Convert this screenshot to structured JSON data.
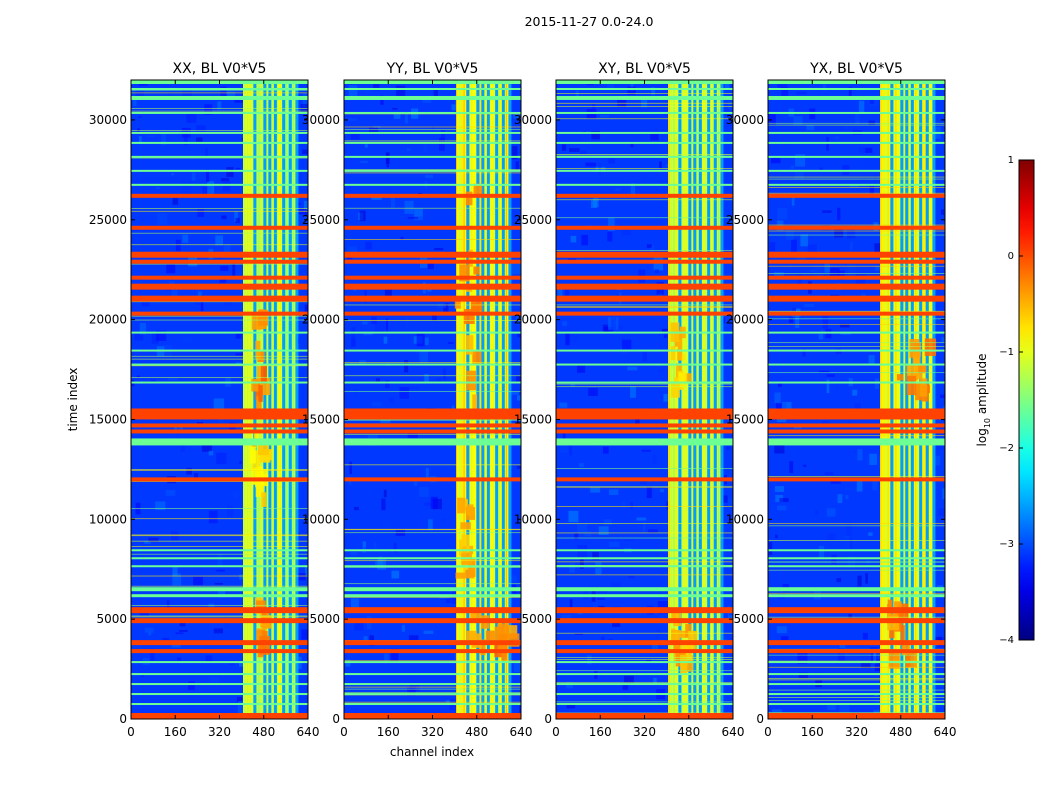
{
  "figure": {
    "suptitle": "2015-11-27 0.0-24.0"
  },
  "chart_data": {
    "type": "heatmap",
    "xlabel": "channel index",
    "ylabel": "time index",
    "xlim": [
      0,
      640
    ],
    "ylim": [
      0,
      32000
    ],
    "xticks": [
      0,
      160,
      320,
      480,
      640
    ],
    "xtick_labels": [
      "0",
      "160",
      "320",
      "480",
      "640"
    ],
    "yticks": [
      0,
      5000,
      10000,
      15000,
      20000,
      25000,
      30000
    ],
    "ytick_labels": [
      "0",
      "5000",
      "10000",
      "15000",
      "20000",
      "25000",
      "30000"
    ],
    "panels": [
      {
        "title": "XX, BL V0*V5",
        "show_xlabel": false,
        "show_ylabel": true,
        "band_level": -1.2,
        "blobs": [
          [
            430,
            470,
            15500,
            20000,
            -0.25
          ],
          [
            430,
            480,
            10500,
            14000,
            -0.7
          ],
          [
            440,
            480,
            2500,
            5500,
            -0.4
          ]
        ]
      },
      {
        "title": "YY, BL V0*V5",
        "show_xlabel": true,
        "show_ylabel": false,
        "band_level": -0.9,
        "blobs": [
          [
            400,
            500,
            15500,
            27000,
            -0.35
          ],
          [
            400,
            450,
            6500,
            10500,
            -0.45
          ],
          [
            430,
            600,
            3000,
            5000,
            -0.3
          ]
        ]
      },
      {
        "title": "XY, BL V0*V5",
        "show_xlabel": false,
        "show_ylabel": false,
        "band_level": -1.05,
        "blobs": [
          [
            410,
            450,
            16000,
            20000,
            -0.6
          ],
          [
            410,
            480,
            2500,
            5500,
            -0.5
          ]
        ]
      },
      {
        "title": "YX, BL V0*V5",
        "show_xlabel": false,
        "show_ylabel": false,
        "band_level": -0.95,
        "blobs": [
          [
            440,
            570,
            15500,
            18500,
            -0.35
          ],
          [
            420,
            500,
            2500,
            5500,
            -0.3
          ]
        ]
      }
    ],
    "rfi_channel_band": [
      405,
      600
    ],
    "rfi_channel_columns": [
      448,
      484,
      502,
      522,
      552,
      576,
      600
    ],
    "strong_rows": [
      [
        0,
        300
      ],
      [
        3300,
        3500
      ],
      [
        3700,
        3950
      ],
      [
        4800,
        5050
      ],
      [
        5300,
        5600
      ],
      [
        11900,
        12100
      ],
      [
        14300,
        14500
      ],
      [
        14600,
        14800
      ],
      [
        15000,
        15550
      ],
      [
        20200,
        20400
      ],
      [
        20900,
        21200
      ],
      [
        21500,
        21800
      ],
      [
        22000,
        22200
      ],
      [
        22800,
        23000
      ],
      [
        23100,
        23400
      ],
      [
        24500,
        24700
      ],
      [
        26100,
        26300
      ]
    ],
    "medium_rows": [
      [
        700,
        800
      ],
      [
        1200,
        1300
      ],
      [
        1700,
        1800
      ],
      [
        2200,
        2300
      ],
      [
        2800,
        2900
      ],
      [
        6100,
        6250
      ],
      [
        6400,
        6600
      ],
      [
        7600,
        7700
      ],
      [
        8000,
        8100
      ],
      [
        8400,
        8500
      ],
      [
        13700,
        14050
      ],
      [
        16800,
        16900
      ],
      [
        17700,
        17800
      ],
      [
        18400,
        18500
      ],
      [
        19300,
        19400
      ],
      [
        26700,
        26800
      ],
      [
        27400,
        27500
      ],
      [
        28100,
        28200
      ],
      [
        28800,
        28900
      ],
      [
        29300,
        29400
      ],
      [
        30300,
        30400
      ],
      [
        31000,
        31200
      ],
      [
        31500,
        31600
      ],
      [
        31800,
        32000
      ]
    ],
    "colorbar": {
      "label": "log",
      "label_sub": "10",
      "label_suffix": " amplitude",
      "vmin": -4,
      "vmax": 1,
      "ticks": [
        1,
        0,
        -1,
        -2,
        -3,
        -4
      ],
      "tick_labels": [
        "1",
        "0",
        "−1",
        "−2",
        "−3",
        "−4"
      ]
    }
  }
}
